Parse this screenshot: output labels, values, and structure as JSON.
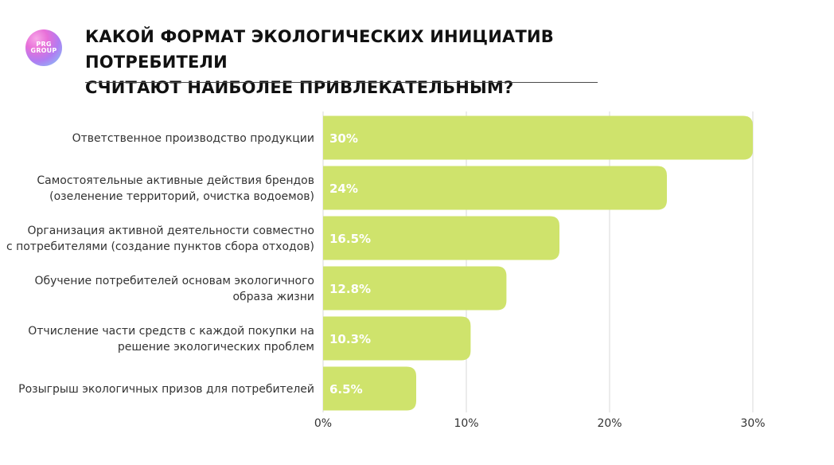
{
  "logo": {
    "line1": "PRG",
    "line2": "GROUP"
  },
  "header": {
    "line1": "КАКОЙ ФОРМАТ ЭКОЛОГИЧЕСКИХ ИНИЦИАТИВ ПОТРЕБИТЕЛИ",
    "line2": "СЧИТАЮТ НАИБОЛЕЕ ПРИВЛЕКАТЕЛЬНЫМ?"
  },
  "colors": {
    "bar": "#cfe36c",
    "grid": "#d9d9d9",
    "text": "#333333"
  },
  "chart_data": {
    "type": "bar",
    "orientation": "horizontal",
    "title": "КАКОЙ ФОРМАТ ЭКОЛОГИЧЕСКИХ ИНИЦИАТИВ ПОТРЕБИТЕЛИ СЧИТАЮТ НАИБОЛЕЕ ПРИВЛЕКАТЕЛЬНЫМ?",
    "categories": [
      [
        "Ответственное производство продукции"
      ],
      [
        "Самостоятельные активные действия брендов",
        "(озеленение территорий, очистка водоемов)"
      ],
      [
        "Организация активной деятельности совместно",
        "с потребителями (создание пунктов сбора отходов)"
      ],
      [
        "Обучение потребителей основам экологичного",
        "образа жизни"
      ],
      [
        "Отчисление части средств с каждой покупки на",
        "решение экологических проблем"
      ],
      [
        "Розыгрыш экологичных призов для потребителей"
      ]
    ],
    "values": [
      30,
      24,
      16.5,
      12.8,
      10.3,
      6.5
    ],
    "value_labels": [
      "30%",
      "24%",
      "16.5%",
      "12.8%",
      "10.3%",
      "6.5%"
    ],
    "xlim": [
      0,
      30
    ],
    "xticks": [
      0,
      10,
      20,
      30
    ],
    "xtick_labels": [
      "0%",
      "10%",
      "20%",
      "30%"
    ],
    "grid": true,
    "xlabel": "",
    "ylabel": ""
  }
}
